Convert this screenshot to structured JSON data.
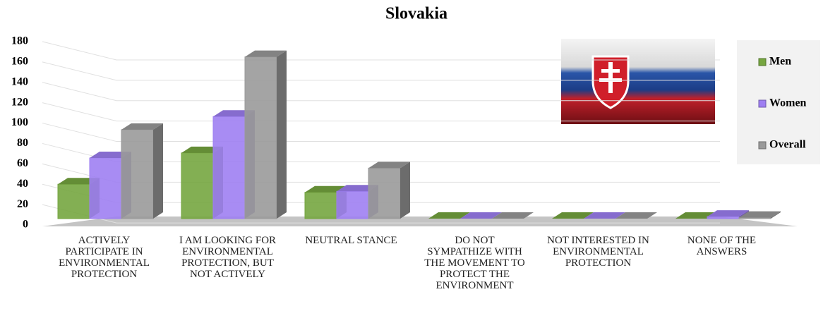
{
  "chart_data": {
    "type": "bar3d",
    "title": "Slovakia",
    "categories": [
      "ACTIVELY PARTICIPATE IN ENVIRONMENTAL PROTECTION",
      "I AM LOOKING FOR ENVIRONMENTAL PROTECTION, BUT NOT ACTIVELY",
      "NEUTRAL STANCE",
      "DO NOT SYMPATHIZE WITH THE MOVEMENT TO PROTECT THE ENVIRONMENT",
      "NOT INTERESTED IN ENVIRONMENTAL PROTECTION",
      "NONE OF THE ANSWERS"
    ],
    "series": [
      {
        "name": "Men",
        "color": "#76a640",
        "values": [
          34,
          65,
          26,
          0,
          0,
          0
        ]
      },
      {
        "name": "Women",
        "color": "#9e7ff2",
        "values": [
          60,
          101,
          27,
          0,
          0,
          2
        ]
      },
      {
        "name": "Overall",
        "color": "#9a9a9a",
        "values": [
          88,
          160,
          50,
          0,
          0,
          1
        ]
      }
    ],
    "ylim": [
      0,
      180
    ],
    "yticks": [
      0,
      20,
      40,
      60,
      80,
      100,
      120,
      140,
      160,
      180
    ],
    "grid": true,
    "legend": "right"
  }
}
